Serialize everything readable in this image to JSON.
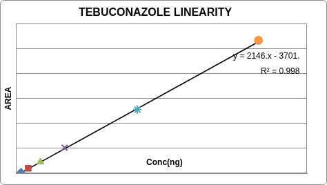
{
  "chart_data": {
    "type": "scatter",
    "title": "TEBUCONAZOLE LINEARITY",
    "x_label": "Conc(ng)",
    "y_label": "AREA",
    "annotations": [
      "y = 2146.x - 3701.",
      "R² = 0.998"
    ],
    "series": [
      {
        "x": [
          2
        ],
        "values": [
          1500
        ],
        "color": "#4a7ebb",
        "marker": "diamond"
      },
      {
        "x": [
          5
        ],
        "values": [
          8000
        ],
        "color": "#be4b48",
        "marker": "square"
      },
      {
        "x": [
          10
        ],
        "values": [
          18000
        ],
        "color": "#98b954",
        "marker": "triangle"
      },
      {
        "x": [
          20
        ],
        "values": [
          41000
        ],
        "color": "#7d60a0",
        "marker": "x"
      },
      {
        "x": [
          50
        ],
        "values": [
          102000
        ],
        "color": "#46aac5",
        "marker": "star"
      },
      {
        "x": [
          100
        ],
        "values": [
          213000
        ],
        "color": "#f79646",
        "marker": "circle"
      },
      {
        "type": "line",
        "x": [
          2,
          100
        ],
        "values": [
          591,
          210899
        ],
        "color": "#000000",
        "line_style": "solid"
      }
    ],
    "xlim": [
      0,
      120
    ],
    "ylim": [
      0,
      240000
    ],
    "yticks": [
      0,
      40000,
      80000,
      120000,
      160000,
      200000,
      240000
    ],
    "grid": "y",
    "tick_labels": false
  }
}
